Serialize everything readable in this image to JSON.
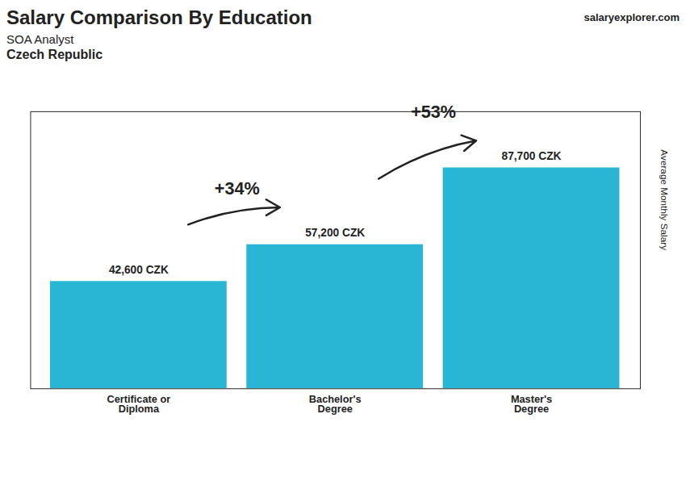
{
  "chart_data": {
    "type": "bar",
    "title": "Salary Comparison By Education",
    "subtitle": [
      "SOA Analyst",
      "Czech Republic"
    ],
    "caption": "salaryexplorer.com",
    "ylabel": "Average Monthly Salary",
    "categories": [
      "Certificate or\nDiploma",
      "Bachelor's\nDegree",
      "Master's\nDegree"
    ],
    "values": [
      42600,
      57200,
      87700
    ],
    "value_labels": [
      "42,600 CZK",
      "57,200 CZK",
      "87,700 CZK"
    ],
    "data_labels": true,
    "annotations": [
      "+34%",
      "+53%"
    ],
    "color": "#29b6d4",
    "ylim": [
      0,
      110000
    ],
    "tick_labels": "x",
    "grid": false
  }
}
